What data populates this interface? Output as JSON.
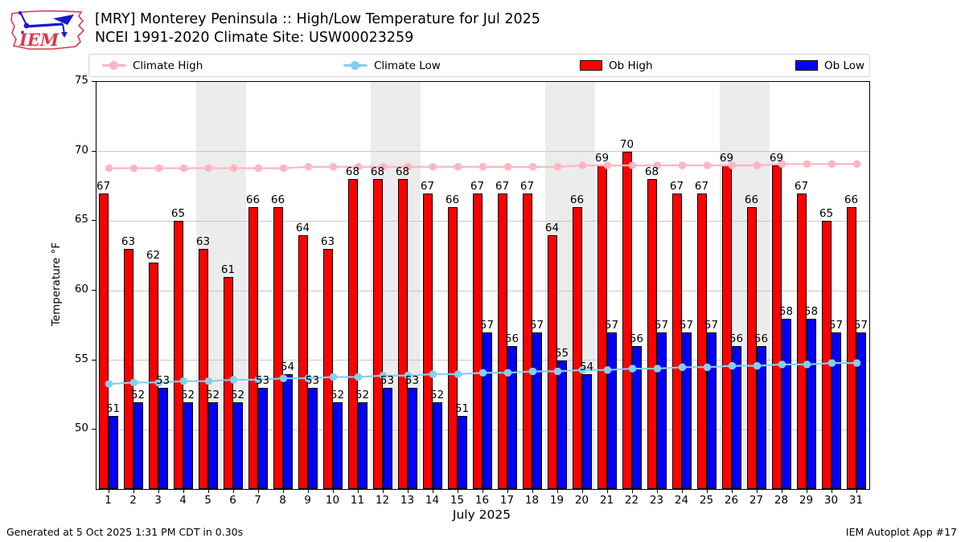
{
  "header": {
    "title_line1": "[MRY] Monterey Peninsula :: High/Low Temperature for Jul 2025",
    "title_line2": "NCEI 1991-2020 Climate Site: USW00023259",
    "logo_text": "IEM"
  },
  "legend": {
    "climate_high_label": "Climate High",
    "climate_low_label": "Climate Low",
    "ob_high_label": "Ob High",
    "ob_low_label": "Ob Low"
  },
  "colors": {
    "climate_high": "#ffb6c1",
    "climate_low": "#87ceeb",
    "ob_high": "#ff0000",
    "ob_low": "#0000ff",
    "weekend_band": "#ececec",
    "gridline": "#c8c8c8",
    "logo_red": "#d93b4f",
    "logo_blue": "#1a1ac8"
  },
  "chart_data": {
    "type": "bar",
    "title": "[MRY] Monterey Peninsula :: High/Low Temperature for Jul 2025",
    "subtitle": "NCEI 1991-2020 Climate Site: USW00023259",
    "xlabel": "July 2025",
    "ylabel": "Temperature °F",
    "x": [
      1,
      2,
      3,
      4,
      5,
      6,
      7,
      8,
      9,
      10,
      11,
      12,
      13,
      14,
      15,
      16,
      17,
      18,
      19,
      20,
      21,
      22,
      23,
      24,
      25,
      26,
      27,
      28,
      29,
      30,
      31
    ],
    "yticks": [
      50,
      55,
      60,
      65,
      70,
      75
    ],
    "ylim": [
      45.75,
      75
    ],
    "grid": "horizontal",
    "legend_position": "top",
    "weekend_shading_days": [
      [
        5,
        6
      ],
      [
        12,
        13
      ],
      [
        19,
        20
      ],
      [
        26,
        27
      ]
    ],
    "series": [
      {
        "name": "Climate High",
        "type": "line",
        "color": "#ffb6c1",
        "values": [
          68.8,
          68.8,
          68.8,
          68.8,
          68.8,
          68.8,
          68.8,
          68.8,
          68.9,
          68.9,
          68.9,
          68.9,
          68.9,
          68.9,
          68.9,
          68.9,
          68.9,
          68.9,
          68.9,
          69.0,
          69.0,
          69.0,
          69.0,
          69.0,
          69.0,
          69.0,
          69.0,
          69.1,
          69.1,
          69.1,
          69.1
        ]
      },
      {
        "name": "Climate Low",
        "type": "line",
        "color": "#87ceeb",
        "values": [
          53.3,
          53.4,
          53.4,
          53.5,
          53.5,
          53.6,
          53.6,
          53.7,
          53.7,
          53.8,
          53.8,
          53.9,
          53.9,
          54.0,
          54.0,
          54.1,
          54.1,
          54.2,
          54.2,
          54.3,
          54.3,
          54.4,
          54.4,
          54.5,
          54.5,
          54.6,
          54.6,
          54.7,
          54.7,
          54.8,
          54.8
        ]
      },
      {
        "name": "Ob High",
        "type": "bar",
        "color": "#ff0000",
        "labeled": true,
        "values": [
          67,
          63,
          62,
          65,
          63,
          61,
          66,
          66,
          64,
          63,
          68,
          68,
          68,
          67,
          66,
          67,
          67,
          67,
          64,
          66,
          69,
          70,
          68,
          67,
          67,
          69,
          66,
          69,
          67,
          65,
          66
        ]
      },
      {
        "name": "Ob Low",
        "type": "bar",
        "color": "#0000ff",
        "labeled": true,
        "values": [
          51,
          52,
          53,
          52,
          52,
          52,
          53,
          54,
          53,
          52,
          52,
          53,
          53,
          52,
          51,
          57,
          56,
          57,
          55,
          54,
          57,
          56,
          57,
          57,
          57,
          56,
          56,
          58,
          58,
          57,
          57
        ]
      }
    ]
  },
  "footer": {
    "left": "Generated at 5 Oct 2025 1:31 PM CDT in 0.30s",
    "right": "IEM Autoplot App #17"
  }
}
